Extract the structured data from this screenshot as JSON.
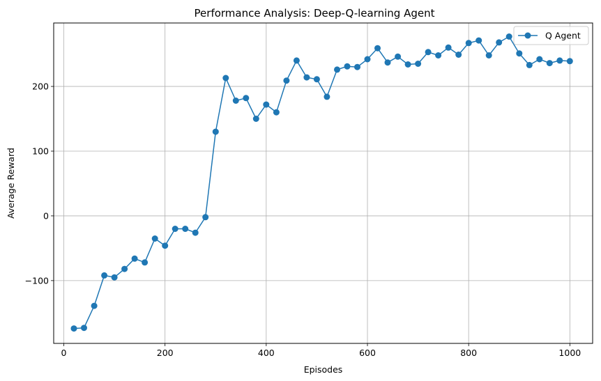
{
  "chart_data": {
    "type": "line",
    "title": "Performance Analysis: Deep-Q-learning Agent",
    "xlabel": "Episodes",
    "ylabel": "Average Reward",
    "xlim": [
      -20,
      1045
    ],
    "ylim": [
      -197,
      298
    ],
    "xticks": [
      0,
      200,
      400,
      600,
      800,
      1000
    ],
    "yticks": [
      -100,
      0,
      100,
      200
    ],
    "grid": true,
    "legend_position": "top-right",
    "series": [
      {
        "name": "Q Agent",
        "color": "#1f77b4",
        "marker": "circle",
        "x": [
          20,
          40,
          60,
          80,
          100,
          120,
          140,
          160,
          180,
          200,
          220,
          240,
          260,
          280,
          300,
          320,
          340,
          360,
          380,
          400,
          420,
          440,
          460,
          480,
          500,
          520,
          540,
          560,
          580,
          600,
          620,
          640,
          660,
          680,
          700,
          720,
          740,
          760,
          780,
          800,
          820,
          840,
          860,
          880,
          900,
          920,
          940,
          960,
          980,
          1000
        ],
        "y": [
          -174,
          -173,
          -139,
          -92,
          -95,
          -82,
          -66,
          -72,
          -35,
          -46,
          -20,
          -20,
          -26,
          -2,
          130,
          213,
          178,
          182,
          150,
          172,
          160,
          209,
          240,
          214,
          211,
          184,
          226,
          231,
          230,
          242,
          259,
          237,
          246,
          234,
          235,
          253,
          248,
          260,
          249,
          267,
          271,
          248,
          268,
          277,
          251,
          233,
          242,
          236,
          240,
          239
        ]
      }
    ]
  }
}
